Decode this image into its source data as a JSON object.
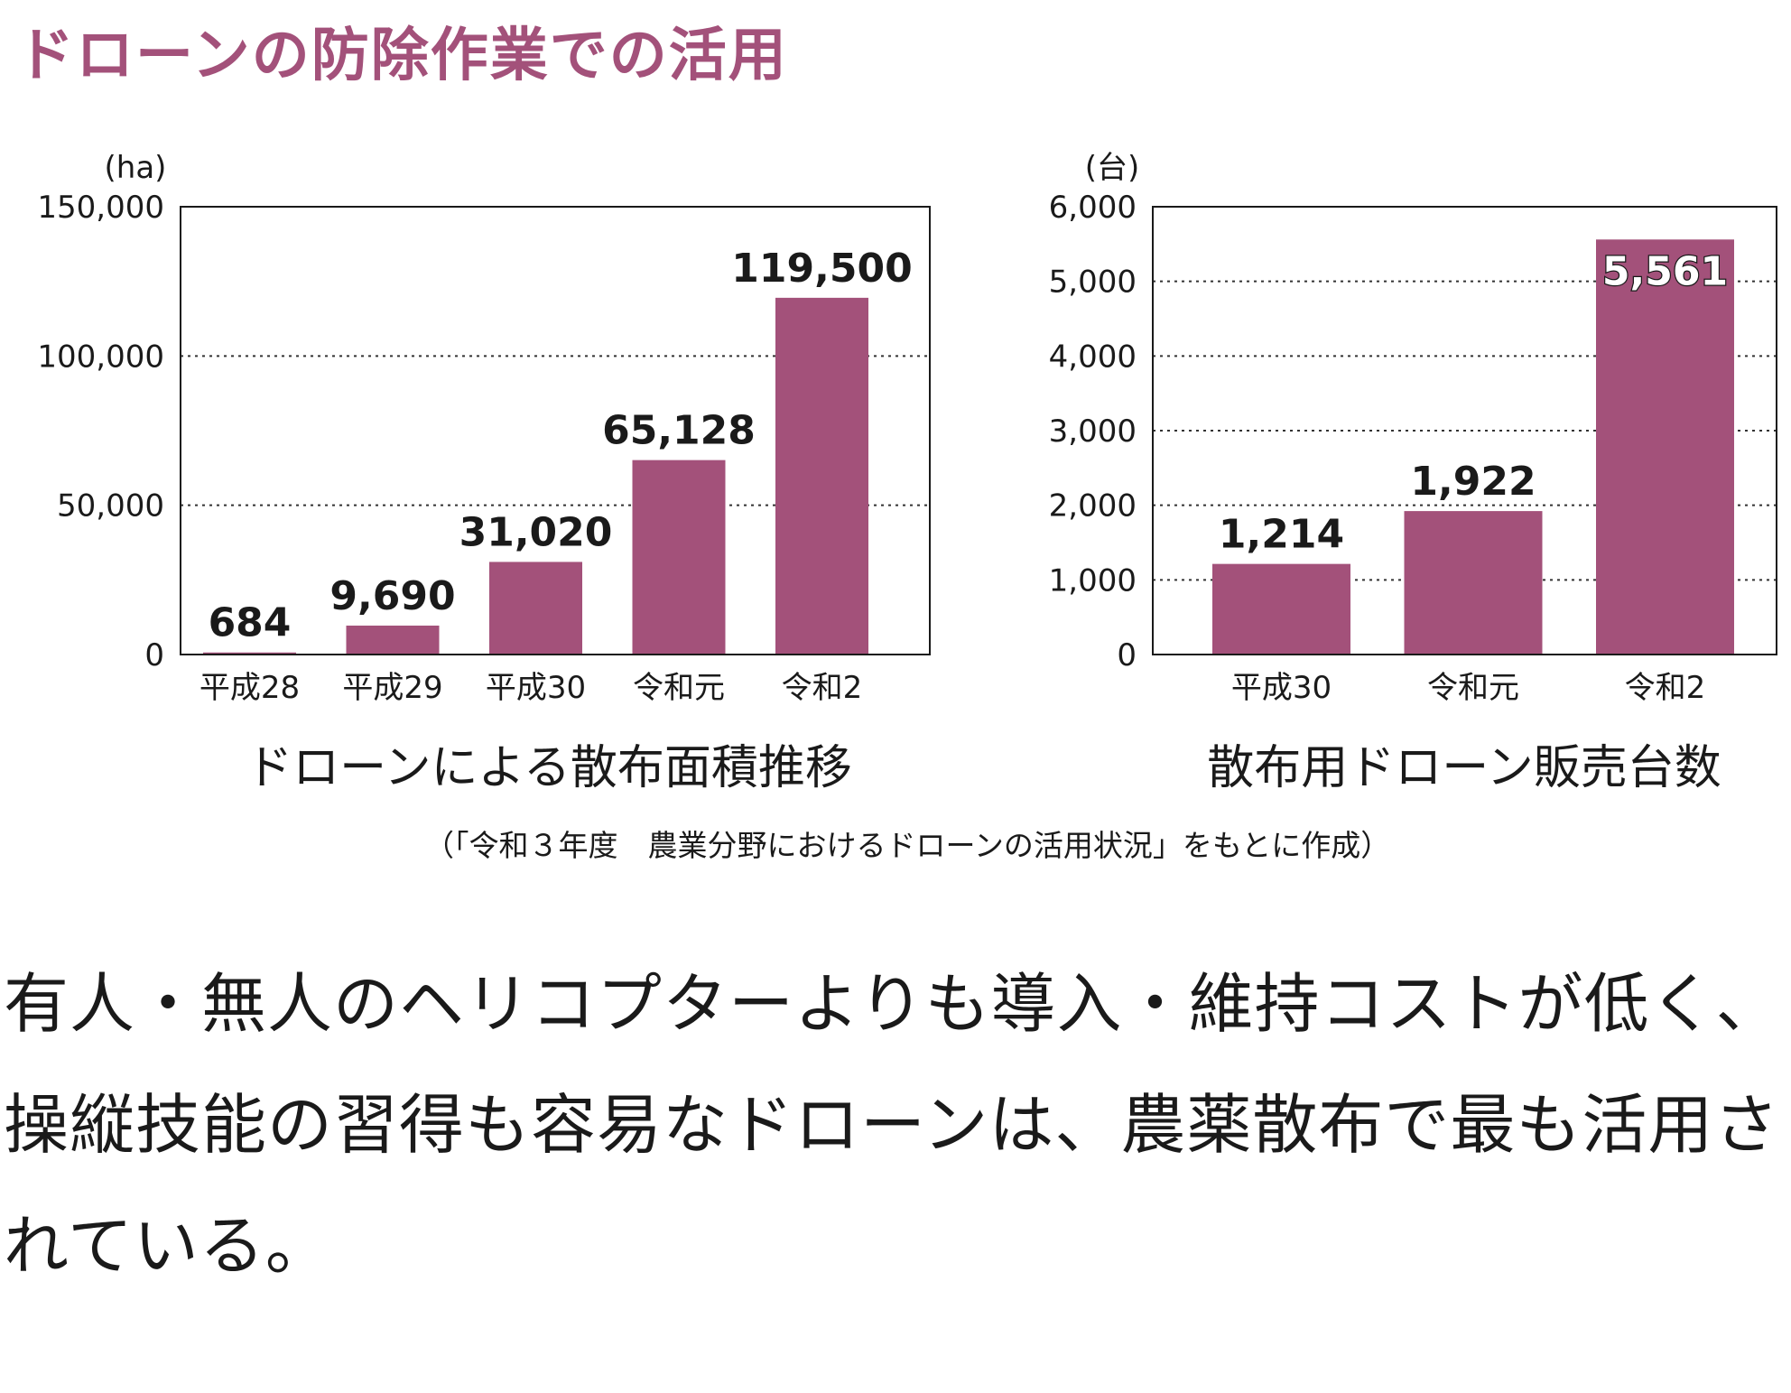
{
  "title": "ドローンの防除作業での活用",
  "source": "（「令和３年度　農業分野におけるドローンの活用状況」をもとに作成）",
  "body_text": "有人・無人のヘリコプターよりも導入・維持コストが低く、操縦技能の習得も容易なドローンは、農薬散布で最も活用されている。",
  "colors": {
    "bar": "#a3517a",
    "title": "#a3517a"
  },
  "chart_data": [
    {
      "type": "bar",
      "title": "ドローンによる散布面積推移",
      "unit": "(ha)",
      "categories": [
        "平成28",
        "平成29",
        "平成30",
        "令和元",
        "令和2"
      ],
      "values": [
        684,
        9690,
        31020,
        65128,
        119500
      ],
      "labels": [
        "684",
        "9,690",
        "31,020",
        "65,128",
        "119,500"
      ],
      "yticks": [
        0,
        50000,
        100000,
        150000
      ],
      "ytick_labels": [
        "0",
        "50,000",
        "100,000",
        "150,000"
      ],
      "ylim": [
        0,
        150000
      ],
      "grid": "dotted"
    },
    {
      "type": "bar",
      "title": "散布用ドローン販売台数",
      "unit": "(台)",
      "categories": [
        "平成30",
        "令和元",
        "令和2"
      ],
      "values": [
        1214,
        1922,
        5561
      ],
      "labels": [
        "1,214",
        "1,922",
        "5,561"
      ],
      "yticks": [
        0,
        1000,
        2000,
        3000,
        4000,
        5000,
        6000
      ],
      "ytick_labels": [
        "0",
        "1,000",
        "2,000",
        "3,000",
        "4,000",
        "5,000",
        "6,000"
      ],
      "ylim": [
        0,
        6000
      ],
      "grid": "dotted"
    }
  ]
}
